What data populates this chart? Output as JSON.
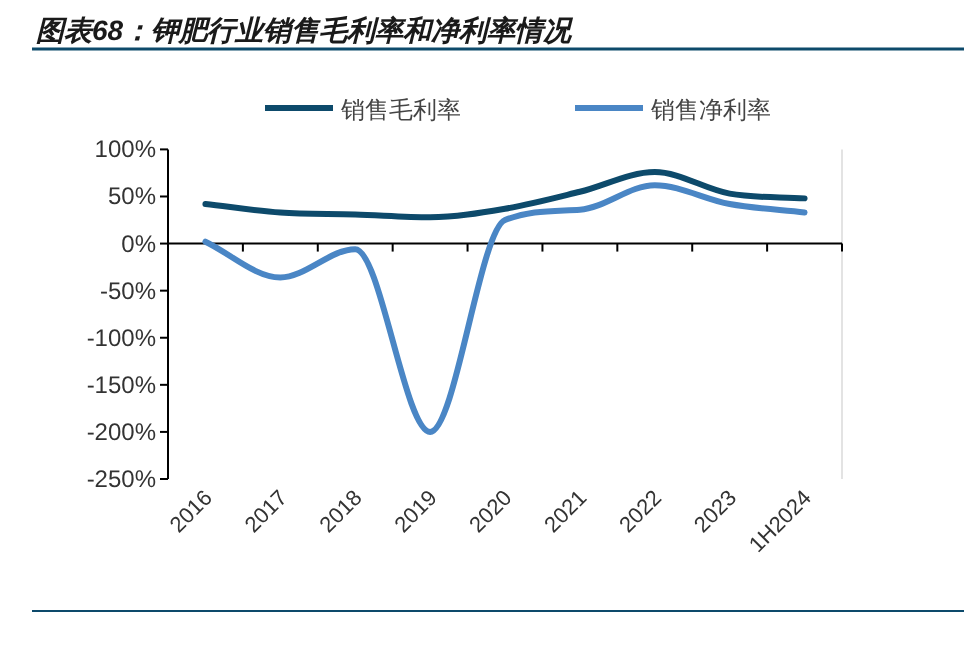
{
  "chart_data": {
    "type": "line",
    "title": "图表68：钾肥行业销售毛利率和净利率情况",
    "categories": [
      "2016",
      "2017",
      "2018",
      "2019",
      "2020",
      "2021",
      "2022",
      "2023",
      "1H2024"
    ],
    "series": [
      {
        "name": "销售毛利率",
        "color": "#0d4a6b",
        "values": [
          42,
          33,
          31,
          28,
          37,
          55,
          76,
          53,
          48
        ]
      },
      {
        "name": "销售净利率",
        "color": "#4a86c5",
        "values": [
          2,
          -36,
          -6,
          -200,
          25,
          36,
          62,
          42,
          33
        ]
      }
    ],
    "ylim": [
      -250,
      100
    ],
    "yticks": [
      {
        "value": 100,
        "label": "100%"
      },
      {
        "value": 50,
        "label": "50%"
      },
      {
        "value": 0,
        "label": "0%"
      },
      {
        "value": -50,
        "label": "-50%"
      },
      {
        "value": -100,
        "label": "-100%"
      },
      {
        "value": -150,
        "label": "-150%"
      },
      {
        "value": -200,
        "label": "-200%"
      },
      {
        "value": -250,
        "label": "-250%"
      }
    ],
    "legend": "top"
  }
}
